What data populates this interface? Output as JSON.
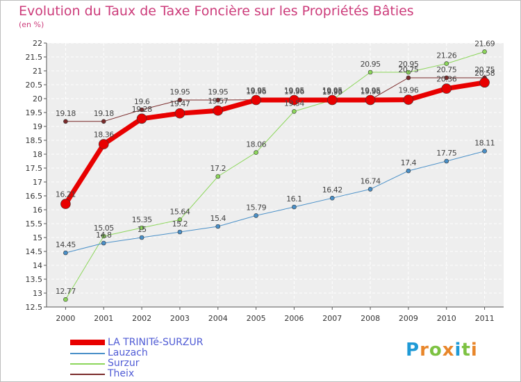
{
  "title": "Evolution du Taux de Taxe Foncière sur les Propriétés Bâties",
  "unit_label": "(en %)",
  "logo": {
    "letters": [
      "P",
      "r",
      "o",
      "x",
      "i",
      "t",
      "i"
    ],
    "colors": [
      "#1f9ad6",
      "#e8862a",
      "#7dc242",
      "#e8862a",
      "#1f9ad6",
      "#7dc242",
      "#e8862a"
    ]
  },
  "chart_data": {
    "type": "line",
    "title": "Evolution du Taux de Taxe Foncière sur les Propriétés Bâties",
    "xlabel": "",
    "ylabel": "(en %)",
    "categories": [
      "2000",
      "2001",
      "2002",
      "2003",
      "2004",
      "2005",
      "2006",
      "2007",
      "2008",
      "2009",
      "2010",
      "2011"
    ],
    "ylim": [
      12.5,
      22
    ],
    "yticks": [
      "12.5",
      "13",
      "13.5",
      "14",
      "14.5",
      "15",
      "15.5",
      "16",
      "16.5",
      "17",
      "17.5",
      "18",
      "18.5",
      "19",
      "19.5",
      "20",
      "20.5",
      "21",
      "21.5",
      "22"
    ],
    "grid": true,
    "legend_position": "bottom-left",
    "series": [
      {
        "name": "LA TRINITé-SURZUR",
        "color": "#e80000",
        "line_width": 7,
        "marker_radius": 7,
        "values": [
          16.21,
          18.36,
          19.28,
          19.47,
          19.57,
          19.95,
          19.95,
          19.95,
          19.95,
          19.96,
          20.36,
          20.58
        ],
        "labels": [
          "16.21",
          "18.36",
          "19.28",
          "19.47",
          "19.57",
          "19.95",
          "19.95",
          "19.95",
          "19.95",
          "19.96",
          "20.36",
          "20.58"
        ]
      },
      {
        "name": "Lauzach",
        "color": "#4a90c8",
        "line_width": 1,
        "marker_radius": 3,
        "values": [
          14.45,
          14.8,
          15,
          15.2,
          15.4,
          15.79,
          16.1,
          16.42,
          16.74,
          17.4,
          17.75,
          18.11
        ],
        "labels": [
          "14.45",
          "14.8",
          "15",
          "15.2",
          "15.4",
          "15.79",
          "16.1",
          "16.42",
          "16.74",
          "17.4",
          "17.75",
          "18.11"
        ]
      },
      {
        "name": "Surzur",
        "color": "#8cd65b",
        "line_width": 1,
        "marker_radius": 3,
        "values": [
          12.77,
          15.05,
          15.35,
          15.64,
          17.2,
          18.06,
          19.54,
          19.95,
          20.95,
          20.95,
          21.26,
          21.69
        ],
        "labels": [
          "12.77",
          "15.05",
          "15.35",
          "15.64",
          "17.2",
          "18.06",
          "19.54",
          "19.95",
          "20.95",
          "20.95",
          "21.26",
          "21.69"
        ]
      },
      {
        "name": "Theix",
        "color": "#7a2a2a",
        "line_width": 1,
        "marker_radius": 3,
        "values": [
          19.18,
          19.18,
          19.6,
          19.95,
          19.95,
          19.96,
          19.96,
          19.96,
          19.96,
          20.75,
          20.75,
          20.75
        ],
        "labels": [
          "19.18",
          "19.18",
          "19.6",
          "19.95",
          "19.95",
          "19.96",
          "19.96",
          "19.96",
          "19.96",
          "20.75",
          "20.75",
          "20.75"
        ]
      }
    ]
  }
}
